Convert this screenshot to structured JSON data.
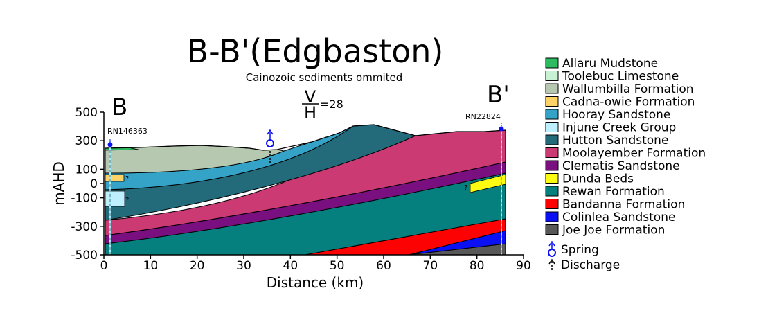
{
  "title": "B-B'(Edgbaston)",
  "subtitle": "Cainozoic sediments ommited",
  "exaggeration": {
    "v": "V",
    "h": "H",
    "value": "=28"
  },
  "section_start_label": "B",
  "section_end_label": "B'",
  "y_axis": {
    "label": "mAHD",
    "ticks": [
      "500",
      "300",
      "100",
      "0",
      "-100",
      "-300",
      "-500"
    ],
    "range": [
      -500,
      500
    ]
  },
  "x_axis": {
    "label": "Distance (km)",
    "ticks": [
      "0",
      "10",
      "20",
      "30",
      "40",
      "50",
      "60",
      "70",
      "80",
      "90"
    ],
    "range": [
      0,
      90
    ]
  },
  "bores": {
    "left": "RN146363",
    "right": "RN22824"
  },
  "unknown_mark": "?",
  "legend": [
    {
      "label": "Allaru Mudstone",
      "color": "#2dbb62"
    },
    {
      "label": "Toolebuc Limestone",
      "color": "#c9f2d4"
    },
    {
      "label": "Wallumbilla Formation",
      "color": "#b7c8b1"
    },
    {
      "label": "Cadna-owie Formation",
      "color": "#fdd267"
    },
    {
      "label": "Hooray Sandstone",
      "color": "#34a3c7"
    },
    {
      "label": "Injune Creek Group",
      "color": "#bdeffd"
    },
    {
      "label": "Hutton Sandstone",
      "color": "#236a7a"
    },
    {
      "label": "Moolayember Formation",
      "color": "#cb3a73"
    },
    {
      "label": "Clematis Sandstone",
      "color": "#7a0f80"
    },
    {
      "label": "Dunda Beds",
      "color": "#fcfc13"
    },
    {
      "label": "Rewan Formation",
      "color": "#05807e"
    },
    {
      "label": "Bandanna Formation",
      "color": "#fc0202"
    },
    {
      "label": "Colinlea Sandstone",
      "color": "#0a10f2"
    },
    {
      "label": "Joe Joe Formation",
      "color": "#585858"
    }
  ],
  "legend_symbols": {
    "spring": "Spring",
    "discharge": "Discharge"
  }
}
